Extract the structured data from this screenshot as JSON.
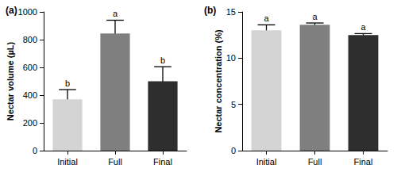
{
  "chart_data": [
    {
      "type": "bar",
      "title": "(a)",
      "y_label": "Nectar volume (µL)",
      "categories": [
        "Initial",
        "Full",
        "Final"
      ],
      "values": [
        370,
        845,
        500
      ],
      "errors": [
        70,
        95,
        105
      ],
      "annotations": [
        "b",
        "a",
        "b"
      ],
      "colors": [
        "#d4d4d4",
        "#7f7f7f",
        "#2e2e2e"
      ],
      "ylim": [
        0,
        1000
      ],
      "yticks": [
        0,
        200,
        400,
        600,
        800,
        1000
      ],
      "grid": false
    },
    {
      "type": "bar",
      "title": "(b)",
      "y_label": "Nectar concentration (%)",
      "categories": [
        "Initial",
        "Full",
        "Final"
      ],
      "values": [
        13.0,
        13.6,
        12.5
      ],
      "errors": [
        0.6,
        0.2,
        0.15
      ],
      "annotations": [
        "a",
        "a",
        "a"
      ],
      "colors": [
        "#d4d4d4",
        "#7f7f7f",
        "#2e2e2e"
      ],
      "ylim": [
        0,
        15
      ],
      "yticks": [
        0,
        5,
        10,
        15
      ],
      "grid": false
    }
  ]
}
